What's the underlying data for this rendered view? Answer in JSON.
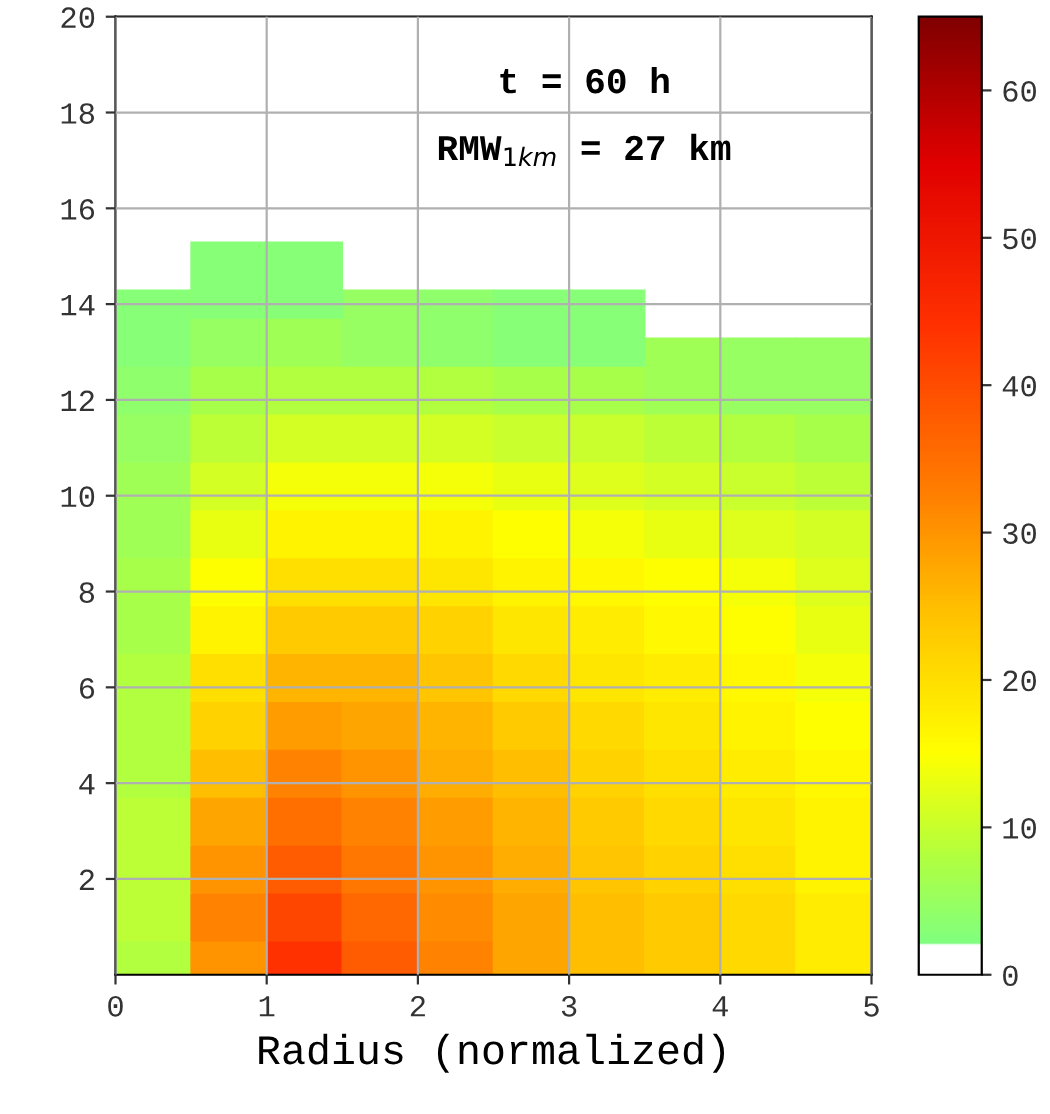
{
  "chart_data": {
    "type": "scatter",
    "xlabel": "Radius (normalized)",
    "annotations": [
      "t = 60 h",
      "RMW$_{1km}$ = 27 km"
    ],
    "xlim": [
      0,
      5
    ],
    "ylim": [
      0,
      20
    ],
    "xticks": [
      0,
      1,
      2,
      3,
      4,
      5
    ],
    "yticks": [
      2,
      4,
      6,
      8,
      10,
      12,
      14,
      16,
      18,
      20
    ],
    "clim": [
      0,
      65
    ],
    "cticks": [
      0,
      10,
      20,
      30,
      40,
      50,
      60
    ],
    "grid": true,
    "marker": "square",
    "x": [
      0.25,
      0.75,
      1.25,
      1.75,
      2.25,
      2.75,
      3.25,
      3.75,
      4.25,
      4.75,
      0.25,
      0.75,
      1.25,
      1.75,
      2.25,
      2.75,
      3.25,
      3.75,
      4.25,
      4.75,
      0.25,
      0.75,
      1.25,
      1.75,
      2.25,
      2.75,
      3.25,
      3.75,
      4.25,
      4.75,
      0.25,
      0.75,
      1.25,
      1.75,
      2.25,
      2.75,
      3.25,
      3.75,
      4.25,
      4.75,
      0.25,
      0.75,
      1.25,
      1.75,
      2.25,
      2.75,
      3.25,
      3.75,
      4.25,
      4.75,
      0.25,
      0.75,
      1.25,
      1.75,
      2.25,
      2.75,
      3.25,
      3.75,
      4.25,
      4.75,
      0.25,
      0.75,
      1.25,
      1.75,
      2.25,
      2.75,
      3.25,
      3.75,
      4.25,
      4.75,
      0.25,
      0.75,
      1.25,
      1.75,
      2.25,
      2.75,
      3.25,
      3.75,
      4.25,
      4.75,
      0.25,
      0.75,
      1.25,
      1.75,
      2.25,
      2.75,
      3.25,
      3.75,
      4.25,
      4.75,
      0.25,
      0.75,
      1.25,
      1.75,
      2.25,
      2.75,
      3.25,
      3.75,
      4.25,
      4.75,
      0.25,
      0.75,
      1.25,
      1.75,
      2.25,
      2.75,
      3.25,
      3.75,
      4.25,
      4.75,
      0.25,
      0.75,
      1.25,
      1.75,
      2.25,
      2.75,
      3.25,
      3.75,
      4.25,
      4.75,
      0.25,
      0.75,
      1.25,
      1.75,
      2.25,
      2.75,
      3.25,
      3.75,
      4.25,
      4.75,
      0.25,
      0.75,
      1.25,
      1.75,
      2.25,
      2.75,
      3.25,
      0.75,
      1.25
    ],
    "values": [
      0.5,
      0.5,
      0.5,
      0.5,
      0.5,
      0.5,
      0.5,
      0.5,
      0.5,
      0.5,
      1.5,
      1.5,
      1.5,
      1.5,
      1.5,
      1.5,
      1.5,
      1.5,
      1.5,
      1.5,
      2.5,
      2.5,
      2.5,
      2.5,
      2.5,
      2.5,
      2.5,
      2.5,
      2.5,
      2.5,
      3.5,
      3.5,
      3.5,
      3.5,
      3.5,
      3.5,
      3.5,
      3.5,
      3.5,
      3.5,
      4.5,
      4.5,
      4.5,
      4.5,
      4.5,
      4.5,
      4.5,
      4.5,
      4.5,
      4.5,
      5.5,
      5.5,
      5.5,
      5.5,
      5.5,
      5.5,
      5.5,
      5.5,
      5.5,
      5.5,
      6.5,
      6.5,
      6.5,
      6.5,
      6.5,
      6.5,
      6.5,
      6.5,
      6.5,
      6.5,
      7.5,
      7.5,
      7.5,
      7.5,
      7.5,
      7.5,
      7.5,
      7.5,
      7.5,
      7.5,
      8.5,
      8.5,
      8.5,
      8.5,
      8.5,
      8.5,
      8.5,
      8.5,
      8.5,
      8.5,
      9.5,
      9.5,
      9.5,
      9.5,
      9.5,
      9.5,
      9.5,
      9.5,
      9.5,
      9.5,
      10.5,
      10.5,
      10.5,
      10.5,
      10.5,
      10.5,
      10.5,
      10.5,
      10.5,
      10.5,
      11.5,
      11.5,
      11.5,
      11.5,
      11.5,
      11.5,
      11.5,
      11.5,
      11.5,
      11.5,
      12.5,
      12.5,
      12.5,
      12.5,
      12.5,
      12.5,
      12.5,
      12.5,
      12.5,
      12.5,
      13.5,
      13.5,
      13.5,
      13.5,
      13.5,
      13.5,
      13.5,
      14.5,
      14.5
    ],
    "cvalues": [
      8,
      30,
      44,
      38,
      32,
      28,
      25,
      23,
      21,
      18,
      9,
      32,
      41,
      36,
      31,
      28,
      25,
      23,
      21,
      18,
      9,
      30,
      38,
      34,
      30,
      27,
      24,
      22,
      20,
      17,
      9,
      28,
      35,
      32,
      29,
      26,
      23,
      21,
      19,
      17,
      8,
      25,
      32,
      30,
      27,
      25,
      22,
      20,
      18,
      16,
      8,
      22,
      29,
      28,
      26,
      23,
      21,
      19,
      17,
      15,
      8,
      20,
      26,
      26,
      24,
      21,
      19,
      18,
      16,
      14,
      7,
      17,
      23,
      23,
      22,
      19,
      18,
      16,
      15,
      13,
      7,
      15,
      20,
      20,
      19,
      17,
      16,
      15,
      14,
      12,
      6,
      13,
      17,
      17,
      17,
      15,
      14,
      13,
      12,
      11,
      6,
      11,
      14,
      14,
      14,
      13,
      12,
      11,
      10,
      9,
      5,
      9,
      11,
      11,
      11,
      10,
      10,
      9,
      8,
      7,
      4,
      7,
      8,
      8,
      8,
      7,
      7,
      6,
      5,
      5,
      3,
      5,
      6,
      5,
      4,
      3,
      3,
      3,
      3
    ]
  }
}
